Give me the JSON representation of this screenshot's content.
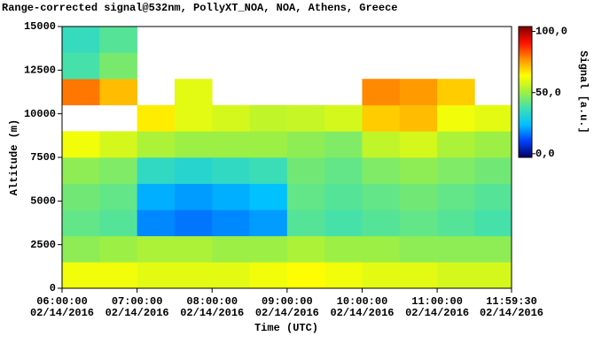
{
  "chart_data": {
    "type": "heatmap",
    "title": "Range-corrected signal@532nm, PollyXT_NOA, NOA, Athens, Greece",
    "xlabel": "Time (UTC)",
    "ylabel": "Altitude (m)",
    "colorbar_label": "Signal [a.u.]",
    "xlim": [
      6,
      11.991667
    ],
    "ylim": [
      0,
      15000
    ],
    "xticks": [
      {
        "value": 6,
        "label": "06:00:00",
        "sublabel": "02/14/2016"
      },
      {
        "value": 7,
        "label": "07:00:00",
        "sublabel": "02/14/2016"
      },
      {
        "value": 8,
        "label": "08:00:00",
        "sublabel": "02/14/2016"
      },
      {
        "value": 9,
        "label": "09:00:00",
        "sublabel": "02/14/2016"
      },
      {
        "value": 10,
        "label": "10:00:00",
        "sublabel": "02/14/2016"
      },
      {
        "value": 11,
        "label": "11:00:00",
        "sublabel": "02/14/2016"
      },
      {
        "value": 11.991667,
        "label": "11:59:30",
        "sublabel": "02/14/2016"
      }
    ],
    "yticks": [
      0,
      2500,
      5000,
      7500,
      10000,
      12500,
      15000
    ],
    "x_bins": [
      6,
      6.5,
      7,
      7.5,
      8,
      8.5,
      9,
      9.5,
      10,
      10.5,
      11,
      11.5,
      11.991667
    ],
    "y_bins": [
      0,
      1500,
      3000,
      4500,
      6000,
      7500,
      9000,
      10500,
      12000,
      13500,
      15000
    ],
    "z": [
      [
        62,
        62,
        60,
        60,
        60,
        62,
        64,
        62,
        60,
        60,
        58,
        58
      ],
      [
        48,
        50,
        52,
        52,
        50,
        50,
        52,
        50,
        50,
        48,
        48,
        48
      ],
      [
        42,
        40,
        18,
        16,
        18,
        20,
        40,
        38,
        40,
        42,
        40,
        38
      ],
      [
        44,
        42,
        22,
        20,
        22,
        24,
        42,
        40,
        42,
        44,
        42,
        40
      ],
      [
        48,
        46,
        34,
        32,
        34,
        36,
        44,
        42,
        46,
        48,
        46,
        44
      ],
      [
        62,
        58,
        52,
        50,
        50,
        50,
        48,
        46,
        55,
        58,
        52,
        50
      ],
      [
        null,
        null,
        66,
        60,
        58,
        55,
        56,
        58,
        70,
        72,
        62,
        60
      ],
      [
        80,
        72,
        null,
        60,
        null,
        null,
        null,
        null,
        78,
        76,
        70,
        null
      ],
      [
        38,
        45,
        null,
        null,
        null,
        null,
        null,
        null,
        null,
        null,
        null,
        null
      ],
      [
        35,
        40,
        null,
        null,
        null,
        null,
        null,
        null,
        null,
        null,
        null,
        null
      ]
    ],
    "zlim": [
      -3,
      104
    ],
    "zticks": [
      {
        "value": 100,
        "label": "100,0"
      },
      {
        "value": 50,
        "label": "50,0"
      },
      {
        "value": 0,
        "label": "0,0"
      }
    ],
    "colormap": [
      "#000060",
      "#0040ff",
      "#00c0ff",
      "#40e0b0",
      "#a0f040",
      "#ffff00",
      "#ff9000",
      "#ff1000",
      "#800000"
    ]
  }
}
